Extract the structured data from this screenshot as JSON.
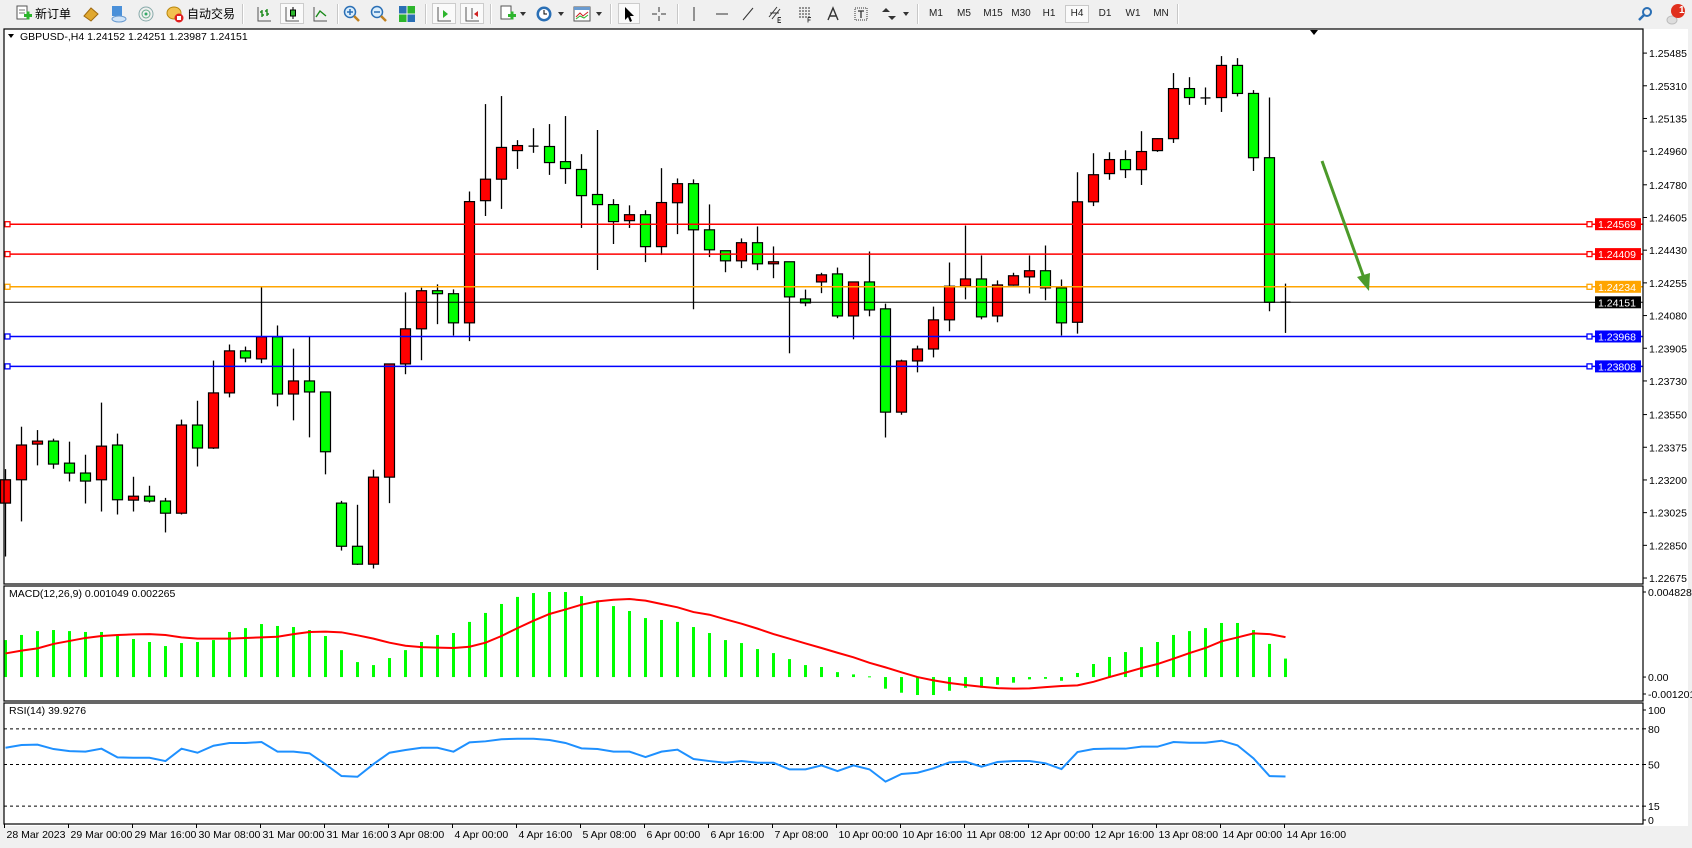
{
  "toolbar": {
    "new_order_label": "新订单",
    "auto_trading_label": "自动交易",
    "icons": [
      "new-order-icon",
      "market-watch-icon",
      "navigator-icon",
      "signals-icon",
      "auto-trading-icon",
      "bar-chart-icon",
      "candlestick-icon",
      "line-chart-icon",
      "zoom-in-icon",
      "zoom-out-icon",
      "tile-windows-icon",
      "auto-scroll-icon",
      "chart-shift-icon",
      "indicators-icon",
      "periods-icon",
      "templates-icon",
      "cursor-icon",
      "crosshair-icon",
      "vertical-line-icon",
      "horizontal-line-icon",
      "trendline-icon",
      "equidistant-channel-icon",
      "fibonacci-icon",
      "text-icon",
      "text-label-icon",
      "arrows-icon",
      "search-icon",
      "notifications-icon"
    ],
    "timeframes": [
      "M1",
      "M5",
      "M15",
      "M30",
      "H1",
      "H4",
      "D1",
      "W1",
      "MN"
    ],
    "active_timeframe": "H4",
    "notification_count": "1"
  },
  "chart": {
    "header": "GBPUSD-,H4  1.24152 1.24251 1.23987 1.24151",
    "colors": {
      "bull": "#ff0000",
      "bear": "#00ff00",
      "outline": "#000000",
      "macd_hist": "#00ff00",
      "macd_signal": "#ff0000",
      "rsi": "#1e90ff",
      "annotation_arrow": "#4c9a2a"
    },
    "price_ticks": [
      "1.25485",
      "1.25310",
      "1.25135",
      "1.24960",
      "1.24780",
      "1.24605",
      "1.24430",
      "1.24255",
      "1.24080",
      "1.23905",
      "1.23730",
      "1.23550",
      "1.23375",
      "1.23200",
      "1.23025",
      "1.22850",
      "1.22675"
    ],
    "levels": [
      {
        "price": "1.24569",
        "color": "#ff0000"
      },
      {
        "price": "1.24409",
        "color": "#ff0000"
      },
      {
        "price": "1.24234",
        "color": "#ffa500"
      },
      {
        "price": "1.23968",
        "color": "#0000ff"
      },
      {
        "price": "1.23808",
        "color": "#0000ff"
      }
    ],
    "bid": {
      "price": "1.24151",
      "color": "#000000"
    },
    "time_labels": [
      "28 Mar 2023",
      "29 Mar 00:00",
      "29 Mar 16:00",
      "30 Mar 08:00",
      "31 Mar 00:00",
      "31 Mar 16:00",
      "3 Apr 08:00",
      "4 Apr 00:00",
      "4 Apr 16:00",
      "5 Apr 08:00",
      "6 Apr 00:00",
      "6 Apr 16:00",
      "7 Apr 08:00",
      "10 Apr 00:00",
      "10 Apr 16:00",
      "11 Apr 08:00",
      "12 Apr 00:00",
      "12 Apr 16:00",
      "13 Apr 08:00",
      "14 Apr 00:00",
      "14 Apr 16:00"
    ],
    "macd": {
      "label": "MACD(12,26,9) 0.001049 0.002265",
      "axis": [
        "0.004828",
        "0.00",
        "-0.001201"
      ]
    },
    "rsi": {
      "label": "RSI(14) 39.9276",
      "axis": [
        "100",
        "80",
        "50",
        "15",
        "0"
      ],
      "levels": [
        80,
        50,
        15
      ]
    }
  },
  "chart_data": {
    "type": "candlestick",
    "symbol": "GBPUSD-",
    "timeframe": "H4",
    "ylim": [
      1.22643,
      1.25614
    ],
    "candles_ohlc": [
      [
        1.23076,
        1.23258,
        1.2279,
        1.23201
      ],
      [
        1.23201,
        1.23485,
        1.22978,
        1.23387
      ],
      [
        1.23392,
        1.23467,
        1.23278,
        1.23408
      ],
      [
        1.23408,
        1.23421,
        1.2326,
        1.23285
      ],
      [
        1.2329,
        1.23405,
        1.23192,
        1.23237
      ],
      [
        1.23237,
        1.23335,
        1.23074,
        1.23194
      ],
      [
        1.23201,
        1.23614,
        1.23031,
        1.23381
      ],
      [
        1.23387,
        1.23448,
        1.23015,
        1.23094
      ],
      [
        1.23092,
        1.23217,
        1.23031,
        1.23113
      ],
      [
        1.23113,
        1.23169,
        1.23079,
        1.23087
      ],
      [
        1.23087,
        1.23104,
        1.22919,
        1.23022
      ],
      [
        1.23022,
        1.23523,
        1.23015,
        1.23494
      ],
      [
        1.23494,
        1.23624,
        1.23272,
        1.23371
      ],
      [
        1.23371,
        1.23839,
        1.23366,
        1.23666
      ],
      [
        1.23666,
        1.23925,
        1.23642,
        1.23891
      ],
      [
        1.23891,
        1.23914,
        1.2383,
        1.23853
      ],
      [
        1.23848,
        1.24232,
        1.23825,
        1.23966
      ],
      [
        1.23966,
        1.24027,
        1.23594,
        1.2366
      ],
      [
        1.2366,
        1.23903,
        1.23519,
        1.2373
      ],
      [
        1.2373,
        1.23966,
        1.23428,
        1.23671
      ],
      [
        1.23671,
        1.23671,
        1.2323,
        1.23351
      ],
      [
        1.23076,
        1.23088,
        1.22822,
        1.22845
      ],
      [
        1.22845,
        1.23067,
        1.22745,
        1.22749
      ],
      [
        1.22749,
        1.23255,
        1.22726,
        1.23215
      ],
      [
        1.23215,
        1.23821,
        1.23076,
        1.23821
      ],
      [
        1.23821,
        1.24204,
        1.23766,
        1.24009
      ],
      [
        1.24009,
        1.24229,
        1.23841,
        1.24213
      ],
      [
        1.24213,
        1.24247,
        1.24034,
        1.24197
      ],
      [
        1.24197,
        1.2422,
        1.23973,
        1.24041
      ],
      [
        1.24041,
        1.24744,
        1.23943,
        1.2469
      ],
      [
        1.24695,
        1.25212,
        1.24613,
        1.2481
      ],
      [
        1.2481,
        1.25255,
        1.24651,
        1.2498
      ],
      [
        1.24963,
        1.25019,
        1.24865,
        1.2499
      ],
      [
        1.24987,
        1.25083,
        1.24951,
        1.24987
      ],
      [
        1.24985,
        1.25105,
        1.24833,
        1.24899
      ],
      [
        1.24904,
        1.25148,
        1.24785,
        1.24867
      ],
      [
        1.24862,
        1.24944,
        1.24549,
        1.24722
      ],
      [
        1.24728,
        1.25073,
        1.24324,
        1.24674
      ],
      [
        1.24674,
        1.24703,
        1.24463,
        1.24583
      ],
      [
        1.24588,
        1.2467,
        1.24549,
        1.2462
      ],
      [
        1.2462,
        1.24644,
        1.24366,
        1.24449
      ],
      [
        1.24449,
        1.24869,
        1.24404,
        1.24685
      ],
      [
        1.24684,
        1.24814,
        1.24516,
        1.24786
      ],
      [
        1.24786,
        1.24809,
        1.24114,
        1.24539
      ],
      [
        1.24539,
        1.24675,
        1.24393,
        1.24432
      ],
      [
        1.24427,
        1.24427,
        1.24312,
        1.24373
      ],
      [
        1.24373,
        1.24493,
        1.24334,
        1.2447
      ],
      [
        1.2447,
        1.24557,
        1.24323,
        1.24357
      ],
      [
        1.24357,
        1.2445,
        1.2428,
        1.24368
      ],
      [
        1.24368,
        1.24368,
        1.23878,
        1.2418
      ],
      [
        1.24169,
        1.24219,
        1.2413,
        1.24148
      ],
      [
        1.2426,
        1.24309,
        1.242,
        1.24298
      ],
      [
        1.24303,
        1.24337,
        1.24066,
        1.24078
      ],
      [
        1.24078,
        1.2426,
        1.23953,
        1.2426
      ],
      [
        1.2426,
        1.24423,
        1.24076,
        1.2411
      ],
      [
        1.24116,
        1.24144,
        1.23427,
        1.23563
      ],
      [
        1.23563,
        1.23844,
        1.23549,
        1.23837
      ],
      [
        1.23837,
        1.23919,
        1.23776,
        1.23901
      ],
      [
        1.23901,
        1.24128,
        1.23856,
        1.24057
      ],
      [
        1.24057,
        1.24364,
        1.23996,
        1.24237
      ],
      [
        1.24237,
        1.24562,
        1.24167,
        1.24276
      ],
      [
        1.24276,
        1.24402,
        1.2406,
        1.24073
      ],
      [
        1.24078,
        1.24268,
        1.24044,
        1.24244
      ],
      [
        1.24243,
        1.24309,
        1.2424,
        1.24293
      ],
      [
        1.24287,
        1.24402,
        1.24198,
        1.2432
      ],
      [
        1.2432,
        1.24455,
        1.24162,
        1.24228
      ],
      [
        1.24228,
        1.24273,
        1.23973,
        1.24041
      ],
      [
        1.24044,
        1.24847,
        1.23983,
        1.24689
      ],
      [
        1.24689,
        1.24949,
        1.24666,
        1.24834
      ],
      [
        1.2484,
        1.24954,
        1.24807,
        1.24915
      ],
      [
        1.24915,
        1.24965,
        1.24816,
        1.24861
      ],
      [
        1.24861,
        1.25067,
        1.24779,
        1.24958
      ],
      [
        1.24963,
        1.25029,
        1.24956,
        1.25027
      ],
      [
        1.25027,
        1.25378,
        1.25004,
        1.25295
      ],
      [
        1.25295,
        1.25356,
        1.25208,
        1.25247
      ],
      [
        1.25245,
        1.25301,
        1.25208,
        1.25245
      ],
      [
        1.25247,
        1.25469,
        1.2517,
        1.25419
      ],
      [
        1.25419,
        1.25458,
        1.25253,
        1.25269
      ],
      [
        1.25269,
        1.25287,
        1.24854,
        1.24925
      ],
      [
        1.24925,
        1.25247,
        1.24103,
        1.24151
      ],
      [
        1.24152,
        1.24251,
        1.23987,
        1.24151
      ]
    ],
    "macd_ylim": [
      -0.00136,
      0.00517
    ],
    "macd_histogram": [
      0.0021,
      0.00239,
      0.00261,
      0.00267,
      0.00261,
      0.00256,
      0.00256,
      0.00233,
      0.00216,
      0.00199,
      0.00176,
      0.00193,
      0.00199,
      0.0021,
      0.00256,
      0.00278,
      0.00301,
      0.0029,
      0.00284,
      0.00267,
      0.00233,
      0.00153,
      0.00085,
      0.00068,
      0.00108,
      0.00153,
      0.00199,
      0.00239,
      0.0025,
      0.00313,
      0.00364,
      0.00415,
      0.00455,
      0.00477,
      0.00483,
      0.00483,
      0.0046,
      0.00432,
      0.00403,
      0.00375,
      0.00335,
      0.00324,
      0.00313,
      0.00284,
      0.0025,
      0.0021,
      0.00193,
      0.00159,
      0.00136,
      0.00102,
      0.00068,
      0.00057,
      0.00028,
      0.00015,
      4e-05,
      -0.00066,
      -0.00089,
      -0.00102,
      -0.00102,
      -0.00078,
      -0.00061,
      -0.00061,
      -0.00044,
      -0.00032,
      -0.00013,
      -0.0001,
      -0.00021,
      0.00023,
      0.00074,
      0.00114,
      0.00142,
      0.0017,
      0.00199,
      0.00239,
      0.00261,
      0.00278,
      0.00307,
      0.00307,
      0.00267,
      0.00188,
      0.001049
    ],
    "macd_signal": [
      0.00134,
      0.0015,
      0.00163,
      0.00188,
      0.00205,
      0.00222,
      0.00233,
      0.00239,
      0.00242,
      0.00244,
      0.00239,
      0.00225,
      0.00218,
      0.00218,
      0.00218,
      0.00222,
      0.00225,
      0.00229,
      0.00244,
      0.00256,
      0.00258,
      0.00254,
      0.00237,
      0.00218,
      0.00195,
      0.00178,
      0.0017,
      0.00167,
      0.00165,
      0.00172,
      0.00195,
      0.00233,
      0.00278,
      0.0032,
      0.00358,
      0.00384,
      0.00411,
      0.0043,
      0.00439,
      0.00443,
      0.00434,
      0.00415,
      0.00396,
      0.00369,
      0.00354,
      0.00328,
      0.00303,
      0.00275,
      0.00244,
      0.00218,
      0.00191,
      0.00165,
      0.00138,
      0.00112,
      0.00081,
      0.00055,
      0.00027,
      0.0,
      -0.00019,
      -0.00034,
      -0.00045,
      -0.00055,
      -0.00063,
      -0.00066,
      -0.00064,
      -0.00057,
      -0.00051,
      -0.00047,
      -0.00027,
      0.0,
      0.00025,
      0.00051,
      0.00074,
      0.00104,
      0.00136,
      0.00165,
      0.00203,
      0.00225,
      0.00248,
      0.00244,
      0.002265
    ],
    "rsi_ylim": [
      0,
      101.7
    ],
    "rsi": [
      64.1,
      66.4,
      66.7,
      63.0,
      61.3,
      60.8,
      63.3,
      56.0,
      55.7,
      55.7,
      52.9,
      63.3,
      59.9,
      65.8,
      68.1,
      68.1,
      68.9,
      60.8,
      60.8,
      59.4,
      50.2,
      40.3,
      39.7,
      50.4,
      59.9,
      62.2,
      64.1,
      64.1,
      60.8,
      68.6,
      69.5,
      71.2,
      71.7,
      71.7,
      70.6,
      68.1,
      63.6,
      63.0,
      60.8,
      60.8,
      56.3,
      60.8,
      62.5,
      54.6,
      52.9,
      51.5,
      52.9,
      51.5,
      51.5,
      45.9,
      45.9,
      49.2,
      44.5,
      49.2,
      45.9,
      35.6,
      42.0,
      43.1,
      46.8,
      51.8,
      52.4,
      48.2,
      52.1,
      52.9,
      52.9,
      51.0,
      46.2,
      60.5,
      63.0,
      63.3,
      63.3,
      65.0,
      65.0,
      68.9,
      68.3,
      68.3,
      70.0,
      66.1,
      55.2,
      40.3,
      39.9276
    ]
  }
}
